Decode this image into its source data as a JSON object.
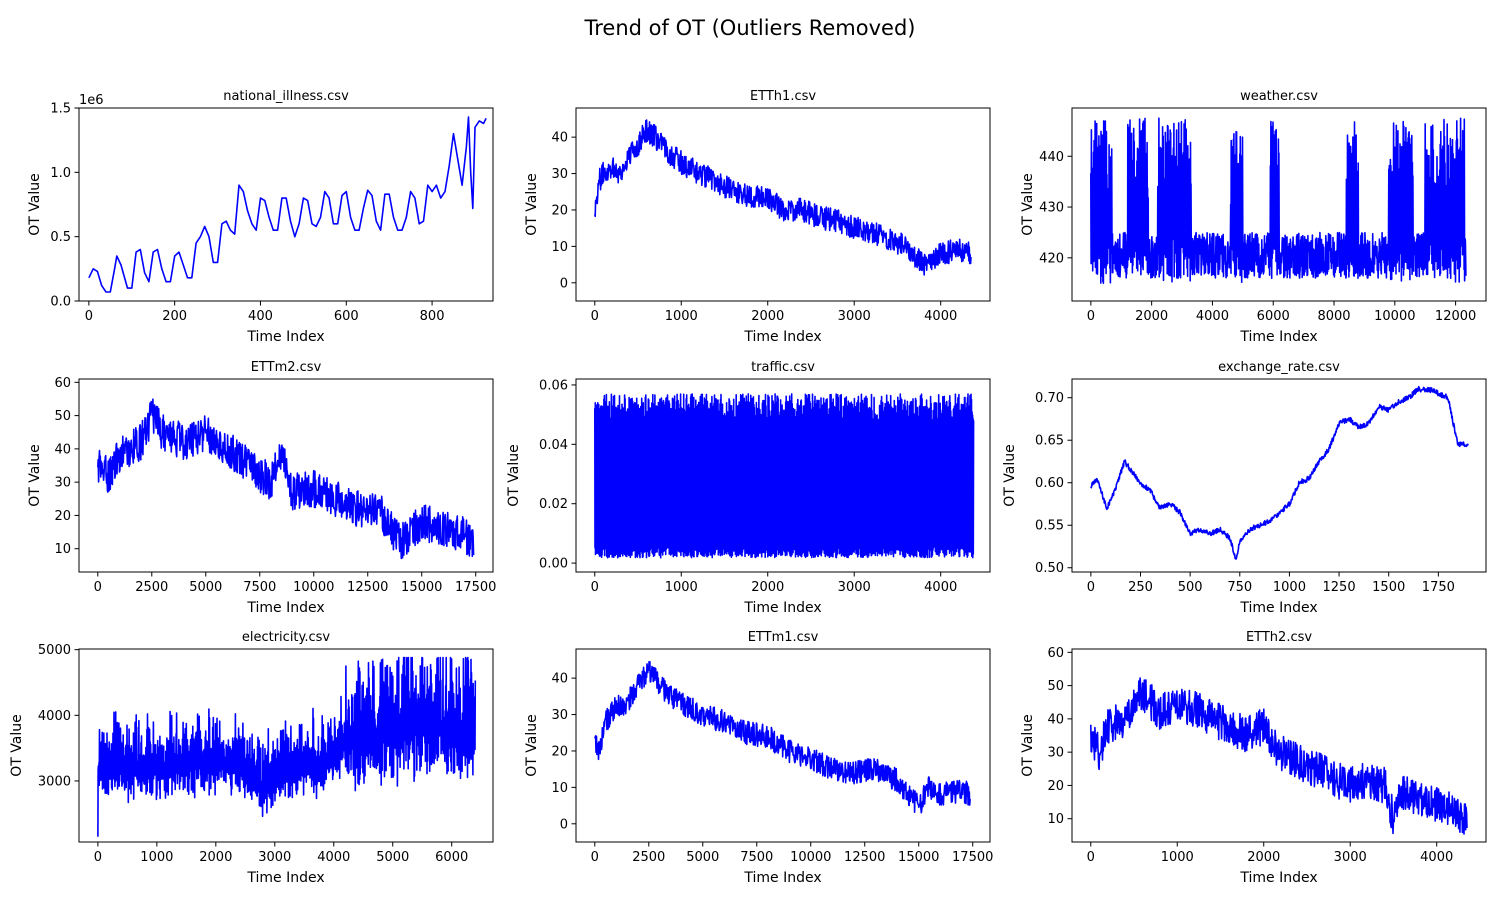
{
  "figure": {
    "suptitle": "Trend of OT (Outliers Removed)",
    "line_color": "#0000ff"
  },
  "chart_data": [
    {
      "type": "line",
      "title": "national_illness.csv",
      "xlabel": "Time Index",
      "ylabel": "OT Value",
      "offset_label": "1e6",
      "xlim": [
        -23,
        942
      ],
      "ylim": [
        0,
        1.5
      ],
      "xticks": [
        0,
        200,
        400,
        600,
        800
      ],
      "yticks": [
        0.0,
        0.5,
        1.0,
        1.5
      ],
      "ytick_labels": [
        "0.0",
        "0.5",
        "1.0",
        "1.5"
      ],
      "series": [
        {
          "x": [
            0,
            10,
            20,
            30,
            40,
            50,
            60,
            65,
            75,
            90,
            100,
            110,
            120,
            130,
            140,
            150,
            160,
            170,
            180,
            190,
            200,
            210,
            220,
            230,
            240,
            250,
            260,
            270,
            280,
            290,
            300,
            310,
            320,
            330,
            340,
            350,
            360,
            370,
            380,
            390,
            400,
            410,
            420,
            430,
            440,
            450,
            460,
            470,
            480,
            490,
            500,
            510,
            520,
            530,
            540,
            550,
            560,
            570,
            580,
            590,
            600,
            610,
            620,
            630,
            640,
            650,
            660,
            670,
            680,
            690,
            700,
            710,
            720,
            730,
            740,
            750,
            760,
            770,
            780,
            790,
            800,
            810,
            820,
            830,
            840,
            850,
            860,
            870,
            880,
            885,
            890,
            895,
            900,
            910,
            920,
            926
          ],
          "y": [
            0.18,
            0.25,
            0.23,
            0.12,
            0.07,
            0.07,
            0.25,
            0.35,
            0.28,
            0.1,
            0.1,
            0.38,
            0.4,
            0.22,
            0.15,
            0.38,
            0.4,
            0.25,
            0.15,
            0.15,
            0.35,
            0.38,
            0.28,
            0.18,
            0.18,
            0.45,
            0.5,
            0.58,
            0.5,
            0.3,
            0.3,
            0.6,
            0.62,
            0.55,
            0.52,
            0.9,
            0.85,
            0.7,
            0.6,
            0.55,
            0.8,
            0.78,
            0.65,
            0.55,
            0.55,
            0.8,
            0.8,
            0.62,
            0.5,
            0.6,
            0.8,
            0.78,
            0.6,
            0.58,
            0.65,
            0.85,
            0.8,
            0.6,
            0.6,
            0.82,
            0.85,
            0.65,
            0.55,
            0.55,
            0.72,
            0.86,
            0.82,
            0.62,
            0.55,
            0.83,
            0.83,
            0.65,
            0.55,
            0.55,
            0.65,
            0.85,
            0.8,
            0.6,
            0.62,
            0.9,
            0.85,
            0.9,
            0.8,
            0.85,
            1.05,
            1.3,
            1.1,
            0.9,
            1.2,
            1.43,
            1.0,
            0.72,
            1.35,
            1.4,
            1.38,
            1.42
          ]
        }
      ]
    },
    {
      "type": "line",
      "title": "ETTh1.csv",
      "xlabel": "Time Index",
      "ylabel": "OT Value",
      "xlim": [
        -217,
        4570
      ],
      "ylim": [
        -5,
        48
      ],
      "xticks": [
        0,
        1000,
        2000,
        3000,
        4000
      ],
      "yticks": [
        0,
        10,
        20,
        30,
        40
      ],
      "ytick_labels": [
        "0",
        "10",
        "20",
        "30",
        "40"
      ],
      "series": [
        {
          "x": [
            0,
            50,
            100,
            200,
            300,
            400,
            500,
            600,
            700,
            800,
            900,
            1000,
            1200,
            1400,
            1600,
            1800,
            2000,
            2200,
            2400,
            2600,
            2800,
            3000,
            3200,
            3400,
            3600,
            3800,
            4000,
            4200,
            4350
          ],
          "y": [
            20,
            28,
            30,
            32,
            30,
            35,
            38,
            42,
            40,
            37,
            35,
            33,
            30,
            28,
            25,
            24,
            23,
            20,
            20,
            18,
            17,
            15,
            14,
            12,
            10,
            5,
            8,
            9,
            8
          ]
        }
      ],
      "noise": 3.2
    },
    {
      "type": "line",
      "title": "weather.csv",
      "xlabel": "Time Index",
      "ylabel": "OT Value",
      "xlim": [
        -620,
        13000
      ],
      "ylim": [
        411.5,
        449.5
      ],
      "xticks": [
        0,
        2000,
        4000,
        6000,
        8000,
        10000,
        12000
      ],
      "yticks": [
        420,
        430,
        440
      ],
      "ytick_labels": [
        "420",
        "430",
        "440"
      ],
      "series": [
        {
          "x": [
            0,
            12340
          ],
          "y": [
            425,
            425
          ]
        }
      ],
      "bursts": [
        [
          0,
          700
        ],
        [
          1200,
          1900
        ],
        [
          2200,
          3300
        ],
        [
          4600,
          5000
        ],
        [
          5900,
          6200
        ],
        [
          8400,
          8800
        ],
        [
          9800,
          10600
        ],
        [
          11000,
          12300
        ]
      ]
    },
    {
      "type": "line",
      "title": "ETTm2.csv",
      "xlabel": "Time Index",
      "ylabel": "OT Value",
      "xlim": [
        -870,
        18300
      ],
      "ylim": [
        3,
        61
      ],
      "xticks": [
        0,
        2500,
        5000,
        7500,
        10000,
        12500,
        15000,
        17500
      ],
      "yticks": [
        10,
        20,
        30,
        40,
        50,
        60
      ],
      "ytick_labels": [
        "10",
        "20",
        "30",
        "40",
        "50",
        "60"
      ],
      "series": [
        {
          "x": [
            0,
            500,
            1000,
            2000,
            2500,
            3000,
            4000,
            5000,
            6000,
            7000,
            8000,
            8500,
            9000,
            10000,
            11000,
            12000,
            13000,
            14000,
            15000,
            16000,
            17000,
            17400
          ],
          "y": [
            35,
            32,
            38,
            42,
            50,
            45,
            42,
            45,
            40,
            35,
            30,
            40,
            27,
            28,
            25,
            22,
            22,
            12,
            18,
            16,
            14,
            10
          ]
        }
      ],
      "noise": 5.5
    },
    {
      "type": "line",
      "title": "traffic.csv",
      "xlabel": "Time Index",
      "ylabel": "OT Value",
      "xlim": [
        -217,
        4570
      ],
      "ylim": [
        -0.003,
        0.062
      ],
      "xticks": [
        0,
        1000,
        2000,
        3000,
        4000
      ],
      "yticks": [
        0.0,
        0.02,
        0.04,
        0.06
      ],
      "ytick_labels": [
        "0.00",
        "0.02",
        "0.04",
        "0.06"
      ],
      "series": [
        {
          "x": [
            0,
            4380
          ],
          "y": [
            0.025,
            0.025
          ]
        }
      ],
      "band": [
        0.003,
        0.052
      ]
    },
    {
      "type": "line",
      "title": "exchange_rate.csv",
      "xlabel": "Time Index",
      "ylabel": "OT Value",
      "xlim": [
        -95,
        1990
      ],
      "ylim": [
        0.495,
        0.722
      ],
      "xticks": [
        0,
        250,
        500,
        750,
        1000,
        1250,
        1500,
        1750
      ],
      "yticks": [
        0.5,
        0.55,
        0.6,
        0.65,
        0.7
      ],
      "ytick_labels": [
        "0.50",
        "0.55",
        "0.60",
        "0.65",
        "0.70"
      ],
      "series": [
        {
          "x": [
            0,
            30,
            80,
            120,
            170,
            200,
            250,
            300,
            350,
            400,
            450,
            500,
            550,
            600,
            650,
            700,
            730,
            750,
            800,
            850,
            900,
            950,
            1000,
            1050,
            1100,
            1150,
            1200,
            1250,
            1300,
            1350,
            1400,
            1450,
            1500,
            1550,
            1600,
            1650,
            1700,
            1750,
            1800,
            1820,
            1850,
            1900
          ],
          "y": [
            0.595,
            0.605,
            0.57,
            0.59,
            0.625,
            0.615,
            0.6,
            0.59,
            0.57,
            0.575,
            0.565,
            0.54,
            0.545,
            0.54,
            0.545,
            0.535,
            0.51,
            0.53,
            0.545,
            0.55,
            0.555,
            0.565,
            0.575,
            0.6,
            0.605,
            0.625,
            0.64,
            0.67,
            0.675,
            0.665,
            0.67,
            0.69,
            0.685,
            0.695,
            0.7,
            0.71,
            0.71,
            0.705,
            0.7,
            0.675,
            0.645,
            0.645
          ]
        }
      ],
      "noise": 0.003
    },
    {
      "type": "line",
      "title": "electricity.csv",
      "xlabel": "Time Index",
      "ylabel": "OT Value",
      "xlim": [
        -320,
        6700
      ],
      "ylim": [
        2070,
        5010
      ],
      "xticks": [
        0,
        1000,
        2000,
        3000,
        4000,
        5000,
        6000
      ],
      "yticks": [
        3000,
        4000,
        5000
      ],
      "ytick_labels": [
        "3000",
        "4000",
        "5000"
      ],
      "series": [
        {
          "x": [
            0,
            1000,
            2000,
            2500,
            2800,
            3200,
            4000,
            4200,
            4800,
            5200,
            5800,
            6300,
            6400
          ],
          "y": [
            3200,
            3200,
            3300,
            3200,
            2900,
            3200,
            3300,
            3600,
            3700,
            3800,
            3800,
            3700,
            3600
          ]
        }
      ],
      "spike_amp": 650,
      "spike_period": 55
    },
    {
      "type": "line",
      "title": "ETTm1.csv",
      "xlabel": "Time Index",
      "ylabel": "OT Value",
      "xlim": [
        -870,
        18300
      ],
      "ylim": [
        -5,
        48
      ],
      "xticks": [
        0,
        2500,
        5000,
        7500,
        10000,
        12500,
        15000,
        17500
      ],
      "yticks": [
        0,
        10,
        20,
        30,
        40
      ],
      "ytick_labels": [
        "0",
        "10",
        "20",
        "30",
        "40"
      ],
      "series": [
        {
          "x": [
            0,
            200,
            500,
            1000,
            1500,
            2000,
            2500,
            3000,
            3500,
            4000,
            5000,
            6000,
            7000,
            8000,
            9000,
            10000,
            11000,
            12000,
            13000,
            14000,
            15000,
            15500,
            16000,
            17000,
            17400
          ],
          "y": [
            22,
            20,
            28,
            32,
            33,
            38,
            42,
            38,
            35,
            33,
            30,
            28,
            25,
            24,
            20,
            18,
            15,
            14,
            15,
            12,
            5,
            10,
            8,
            9,
            8
          ]
        }
      ],
      "noise": 3.2
    },
    {
      "type": "line",
      "title": "ETTh2.csv",
      "xlabel": "Time Index",
      "ylabel": "OT Value",
      "xlim": [
        -217,
        4570
      ],
      "ylim": [
        3,
        61
      ],
      "xticks": [
        0,
        1000,
        2000,
        3000,
        4000
      ],
      "yticks": [
        10,
        20,
        30,
        40,
        50,
        60
      ],
      "ytick_labels": [
        "10",
        "20",
        "30",
        "40",
        "50",
        "60"
      ],
      "series": [
        {
          "x": [
            0,
            100,
            200,
            400,
            600,
            800,
            1000,
            1200,
            1400,
            1600,
            1800,
            2000,
            2100,
            2200,
            2400,
            2600,
            2800,
            3000,
            3200,
            3400,
            3500,
            3600,
            3800,
            4000,
            4200,
            4350
          ],
          "y": [
            35,
            30,
            38,
            40,
            48,
            42,
            45,
            43,
            40,
            38,
            35,
            38,
            32,
            30,
            27,
            25,
            22,
            20,
            22,
            20,
            10,
            18,
            16,
            14,
            12,
            10
          ]
        }
      ],
      "noise": 5.5
    }
  ]
}
